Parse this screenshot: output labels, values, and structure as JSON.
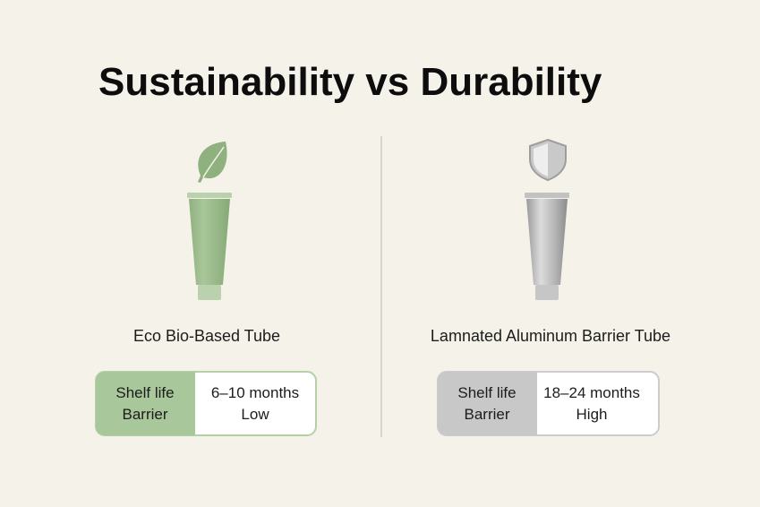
{
  "title": "Sustainability vs Durability",
  "products": [
    {
      "name": "Eco Bio-Based Tube",
      "specs": [
        {
          "label": "Shelf life",
          "value": "6–10 months"
        },
        {
          "label": "Barrier",
          "value": "Low"
        }
      ]
    },
    {
      "name": "Lamnated Aluminum Barrier Tube",
      "specs": [
        {
          "label": "Shelf life",
          "value": "18–24 months"
        },
        {
          "label": "Barrier",
          "value": "High"
        }
      ]
    }
  ]
}
